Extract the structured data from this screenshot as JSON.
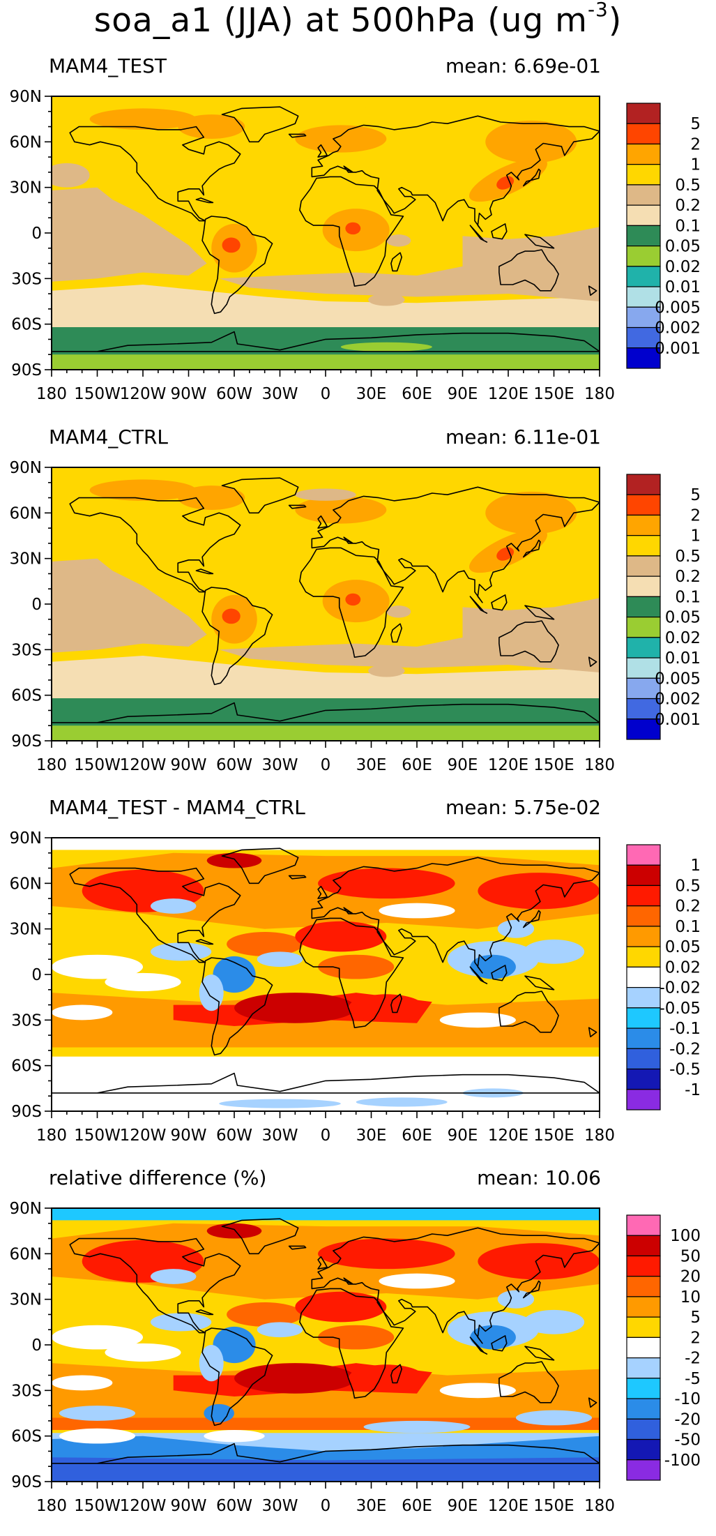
{
  "figure": {
    "title_prefix": "soa_a1 (JJA) at 500hPa (ug m",
    "title_exponent": "-3",
    "title_suffix": ")"
  },
  "axes": {
    "lon_ticks": [
      "180",
      "150W",
      "120W",
      "90W",
      "60W",
      "30W",
      "0",
      "30E",
      "60E",
      "90E",
      "120E",
      "150E",
      "180"
    ],
    "lat_ticks": [
      "90N",
      "60N",
      "30N",
      "0",
      "30S",
      "60S",
      "90S"
    ]
  },
  "panels": [
    {
      "title": "MAM4_TEST",
      "mean_label": "mean: 6.69e-01",
      "legend": {
        "colors": [
          "#b22222",
          "#ff4500",
          "#ffa500",
          "#ffd700",
          "#deb887",
          "#f5deb3",
          "#2e8b57",
          "#9acd32",
          "#20b2aa",
          "#b0e0e6",
          "#87a8ee",
          "#4169e1",
          "#0000cd"
        ],
        "labels": [
          "5",
          "2",
          "1",
          "0.5",
          "0.2",
          "0.1",
          "0.05",
          "0.02",
          "0.01",
          "0.005",
          "0.002",
          "0.001"
        ]
      }
    },
    {
      "title": "MAM4_CTRL",
      "mean_label": "mean: 6.11e-01",
      "legend": {
        "colors": [
          "#b22222",
          "#ff4500",
          "#ffa500",
          "#ffd700",
          "#deb887",
          "#f5deb3",
          "#2e8b57",
          "#9acd32",
          "#20b2aa",
          "#b0e0e6",
          "#87a8ee",
          "#4169e1",
          "#0000cd"
        ],
        "labels": [
          "5",
          "2",
          "1",
          "0.5",
          "0.2",
          "0.1",
          "0.05",
          "0.02",
          "0.01",
          "0.005",
          "0.002",
          "0.001"
        ]
      }
    },
    {
      "title": "MAM4_TEST - MAM4_CTRL",
      "mean_label": "mean: 5.75e-02",
      "legend": {
        "colors": [
          "#ff69b4",
          "#cc0000",
          "#ff1a00",
          "#ff6600",
          "#ff9a00",
          "#ffd700",
          "#ffffff",
          "#a6d2ff",
          "#1ec8ff",
          "#2b8ce8",
          "#3060dd",
          "#1418b4",
          "#8a2be2"
        ],
        "labels": [
          "1",
          "0.5",
          "0.2",
          "0.1",
          "0.05",
          "0.02",
          "-0.02",
          "-0.05",
          "-0.1",
          "-0.2",
          "-0.5",
          "-1"
        ]
      }
    },
    {
      "title": "relative difference (%)",
      "mean_label": "mean: 10.06",
      "legend": {
        "colors": [
          "#ff69b4",
          "#cc0000",
          "#ff1a00",
          "#ff6600",
          "#ff9a00",
          "#ffd700",
          "#ffffff",
          "#a6d2ff",
          "#1ec8ff",
          "#2b8ce8",
          "#3060dd",
          "#1418b4",
          "#8a2be2"
        ],
        "labels": [
          "100",
          "50",
          "20",
          "10",
          "5",
          "2",
          "-2",
          "-5",
          "-10",
          "-20",
          "-50",
          "-100"
        ]
      }
    }
  ]
}
